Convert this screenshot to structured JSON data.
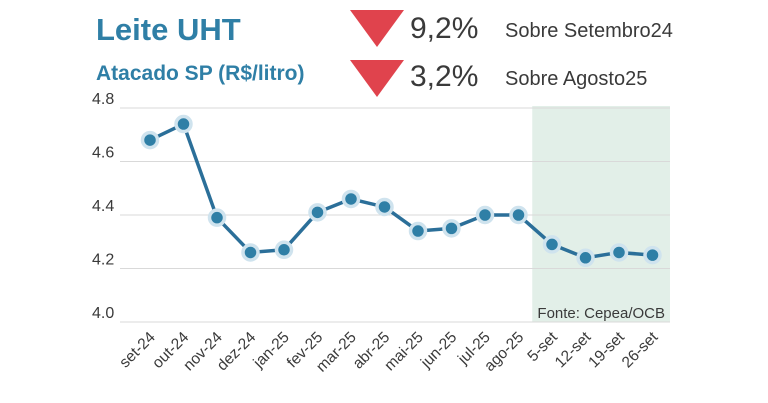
{
  "header": {
    "title": "Leite UHT",
    "subtitle": "Atacado SP (R$/litro)",
    "change1": {
      "value": "9,2%",
      "label": "Sobre Setembro24",
      "direction": "down"
    },
    "change2": {
      "value": "3,2%",
      "label": "Sobre Agosto25",
      "direction": "down"
    }
  },
  "colors": {
    "accent": "#2f7fa6",
    "line": "#2b6f99",
    "marker_fill": "#2f7fa6",
    "marker_stroke": "#cfe3ee",
    "down_arrow": "#e0434d",
    "highlight": "#e2efe8",
    "grid": "#d9d9d9"
  },
  "chart_data": {
    "type": "line",
    "categories": [
      "set-24",
      "out-24",
      "nov-24",
      "dez-24",
      "jan-25",
      "fev-25",
      "mar-25",
      "abr-25",
      "mai-25",
      "jun-25",
      "jul-25",
      "ago-25",
      "5-set",
      "12-set",
      "19-set",
      "26-set"
    ],
    "series": [
      {
        "values": [
          4.68,
          4.74,
          4.39,
          4.26,
          4.27,
          4.41,
          4.46,
          4.43,
          4.34,
          4.35,
          4.4,
          4.4,
          4.29,
          4.24,
          4.26,
          4.25
        ]
      }
    ],
    "ylim": [
      4.0,
      4.8
    ],
    "yticks": [
      "4.0",
      "4.2",
      "4.4",
      "4.6",
      "4.8"
    ],
    "grid": true,
    "highlight_categories": [
      "5-set",
      "12-set",
      "19-set",
      "26-set"
    ],
    "source": "Fonte: Cepea/OCB"
  }
}
